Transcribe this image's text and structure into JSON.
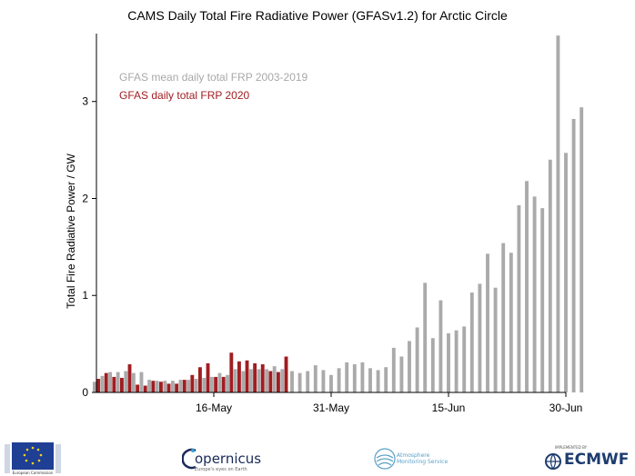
{
  "chart_data": {
    "type": "bar",
    "title": "CAMS Daily Total Fire Radiative Power (GFASv1.2) for Arctic Circle",
    "xlabel": "",
    "ylabel": "Total Fire Radiative Power / GW",
    "ylim": [
      0,
      3.7
    ],
    "yticks": [
      0,
      1,
      2,
      3
    ],
    "x_start": "1-May",
    "x_end": "30-Jun",
    "xticks": [
      {
        "label": "16-May",
        "day": 15
      },
      {
        "label": "31-May",
        "day": 30
      },
      {
        "label": "15-Jun",
        "day": 45
      },
      {
        "label": "30-Jun",
        "day": 60
      }
    ],
    "grid": false,
    "legend_position": "top-left",
    "series": [
      {
        "name": "GFAS mean daily total FRP 2003-2019",
        "color": "#aaaaaa",
        "values": [
          0.11,
          0.17,
          0.21,
          0.21,
          0.22,
          0.2,
          0.21,
          0.13,
          0.12,
          0.12,
          0.12,
          0.13,
          0.13,
          0.14,
          0.15,
          0.16,
          0.2,
          0.18,
          0.24,
          0.22,
          0.24,
          0.24,
          0.24,
          0.27,
          0.24,
          0.22,
          0.2,
          0.22,
          0.28,
          0.23,
          0.18,
          0.25,
          0.31,
          0.29,
          0.31,
          0.25,
          0.23,
          0.26,
          0.46,
          0.37,
          0.53,
          0.67,
          1.13,
          0.56,
          0.95,
          0.61,
          0.64,
          0.68,
          1.03,
          1.12,
          1.43,
          1.08,
          1.54,
          1.44,
          1.93,
          2.18,
          2.02,
          1.9,
          2.4,
          3.68,
          2.47,
          2.82,
          2.94
        ]
      },
      {
        "name": "GFAS daily total FRP 2020",
        "color": "#a11d21",
        "values": [
          0.14,
          0.2,
          0.16,
          0.15,
          0.29,
          0.08,
          0.07,
          0.12,
          0.11,
          0.09,
          0.09,
          0.13,
          0.18,
          0.26,
          0.3,
          0.16,
          0.16,
          0.41,
          0.32,
          0.33,
          0.3,
          0.29,
          0.22,
          0.21,
          0.37
        ]
      }
    ]
  },
  "footer": {
    "copernicus_word": "opernicus",
    "copernicus_tag": "Europe's eyes on Earth",
    "cams_line1": "Atmosphere",
    "cams_line2": "Monitoring Service",
    "ecmwf_small": "IMPLEMENTED BY",
    "ecmwf_word": "ECMWF",
    "eu_text": "European Commission"
  }
}
